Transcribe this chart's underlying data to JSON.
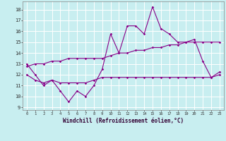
{
  "xlabel": "Windchill (Refroidissement éolien,°C)",
  "x_values": [
    0,
    1,
    2,
    3,
    4,
    5,
    6,
    7,
    8,
    9,
    10,
    11,
    12,
    13,
    14,
    15,
    16,
    17,
    18,
    19,
    20,
    21,
    22,
    23
  ],
  "line1_y": [
    13,
    12,
    11,
    11.5,
    10.5,
    9.5,
    10.5,
    10,
    11,
    12.5,
    15.75,
    14,
    16.5,
    16.5,
    15.75,
    18.25,
    16.25,
    15.75,
    15,
    15,
    15.25,
    13.25,
    11.75,
    12.25
  ],
  "line2_y": [
    12,
    11.5,
    11.25,
    11.5,
    11.25,
    11.25,
    11.25,
    11.25,
    11.5,
    11.75,
    11.75,
    11.75,
    11.75,
    11.75,
    11.75,
    11.75,
    11.75,
    11.75,
    11.75,
    11.75,
    11.75,
    11.75,
    11.75,
    12.0
  ],
  "line3_y": [
    12.75,
    13.0,
    13.0,
    13.25,
    13.25,
    13.5,
    13.5,
    13.5,
    13.5,
    13.5,
    13.75,
    14.0,
    14.0,
    14.25,
    14.25,
    14.5,
    14.5,
    14.75,
    14.75,
    15.0,
    15.0,
    15.0,
    15.0,
    15.0
  ],
  "line_color": "#880088",
  "bg_color": "#c8eef0",
  "grid_color": "#aadddd",
  "xlim": [
    -0.5,
    23.5
  ],
  "ylim": [
    8.75,
    18.75
  ],
  "yticks": [
    9,
    10,
    11,
    12,
    13,
    14,
    15,
    16,
    17,
    18
  ],
  "xtick_labels": [
    "0",
    "1",
    "2",
    "3",
    "4",
    "5",
    "6",
    "7",
    "8",
    "9",
    "10",
    "11",
    "12",
    "13",
    "14",
    "15",
    "16",
    "17",
    "18",
    "19",
    "20",
    "21",
    "22",
    "23"
  ]
}
